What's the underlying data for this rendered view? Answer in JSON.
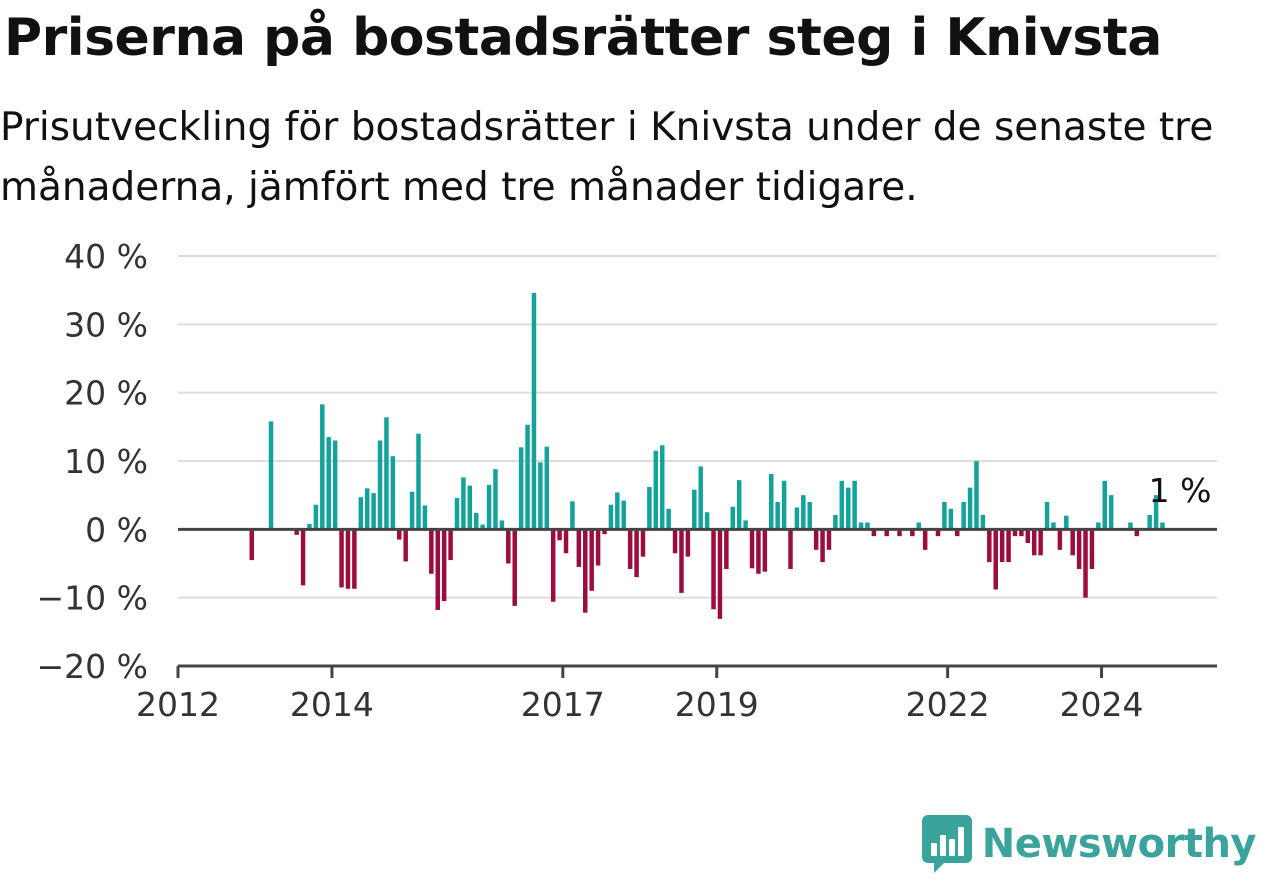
{
  "title": "Priserna på bostadsrätter steg i Knivsta",
  "subtitle": "Prisutveckling för bostadsrätter i Knivsta under de senaste tre månaderna, jämfört med tre månader tidigare.",
  "brand": {
    "name": "Newsworthy",
    "icon": "newsworthy-chart-icon"
  },
  "colors": {
    "positive": "#13a39a",
    "negative": "#9b0d3e",
    "grid": "#dddddd",
    "axis": "#444444",
    "brand": "#3aa39b"
  },
  "chart_data": {
    "type": "bar",
    "title": "",
    "xlabel": "",
    "ylabel": "",
    "ylim": [
      -20,
      40
    ],
    "xlim": [
      "2012-01",
      "2025-07"
    ],
    "y_ticks": [
      {
        "value": 40,
        "label": "40 %"
      },
      {
        "value": 30,
        "label": "30 %"
      },
      {
        "value": 20,
        "label": "20 %"
      },
      {
        "value": 10,
        "label": "10 %"
      },
      {
        "value": 0,
        "label": "0 %"
      },
      {
        "value": -10,
        "label": "−10 %"
      },
      {
        "value": -20,
        "label": "−20 %"
      }
    ],
    "x_ticks": [
      {
        "value": "2012-01",
        "label": "2012"
      },
      {
        "value": "2014-01",
        "label": "2014"
      },
      {
        "value": "2017-01",
        "label": "2017"
      },
      {
        "value": "2019-01",
        "label": "2019"
      },
      {
        "value": "2022-01",
        "label": "2022"
      },
      {
        "value": "2024-01",
        "label": "2024"
      }
    ],
    "grid": true,
    "annotation": {
      "text": "1 %",
      "x": "2024-12",
      "y": 1
    },
    "series": [
      {
        "values": [
          [
            "2012-12",
            -4.5
          ],
          [
            "2013-03",
            15.8
          ],
          [
            "2013-07",
            -0.8
          ],
          [
            "2013-08",
            -8.2
          ],
          [
            "2013-09",
            0.8
          ],
          [
            "2013-10",
            3.6
          ],
          [
            "2013-11",
            18.3
          ],
          [
            "2013-12",
            13.5
          ],
          [
            "2014-01",
            13.0
          ],
          [
            "2014-02",
            -8.5
          ],
          [
            "2014-03",
            -8.7
          ],
          [
            "2014-04",
            -8.7
          ],
          [
            "2014-05",
            4.7
          ],
          [
            "2014-06",
            6.0
          ],
          [
            "2014-07",
            5.3
          ],
          [
            "2014-08",
            13.0
          ],
          [
            "2014-09",
            16.4
          ],
          [
            "2014-10",
            10.7
          ],
          [
            "2014-11",
            -1.5
          ],
          [
            "2014-12",
            -4.7
          ],
          [
            "2015-01",
            5.5
          ],
          [
            "2015-02",
            14.0
          ],
          [
            "2015-03",
            3.5
          ],
          [
            "2015-04",
            -6.5
          ],
          [
            "2015-05",
            -11.8
          ],
          [
            "2015-06",
            -10.5
          ],
          [
            "2015-07",
            -4.5
          ],
          [
            "2015-08",
            4.6
          ],
          [
            "2015-09",
            7.6
          ],
          [
            "2015-10",
            6.4
          ],
          [
            "2015-11",
            2.4
          ],
          [
            "2015-12",
            0.7
          ],
          [
            "2016-01",
            6.5
          ],
          [
            "2016-02",
            8.8
          ],
          [
            "2016-03",
            1.3
          ],
          [
            "2016-04",
            -5.0
          ],
          [
            "2016-05",
            -11.2
          ],
          [
            "2016-06",
            12.0
          ],
          [
            "2016-07",
            15.3
          ],
          [
            "2016-08",
            34.6
          ],
          [
            "2016-09",
            9.8
          ],
          [
            "2016-10",
            12.1
          ],
          [
            "2016-11",
            -10.6
          ],
          [
            "2016-12",
            -1.6
          ],
          [
            "2017-01",
            -3.5
          ],
          [
            "2017-02",
            4.1
          ],
          [
            "2017-03",
            -5.5
          ],
          [
            "2017-04",
            -12.2
          ],
          [
            "2017-05",
            -9.0
          ],
          [
            "2017-06",
            -5.3
          ],
          [
            "2017-07",
            -0.7
          ],
          [
            "2017-08",
            3.6
          ],
          [
            "2017-09",
            5.4
          ],
          [
            "2017-10",
            4.2
          ],
          [
            "2017-11",
            -5.8
          ],
          [
            "2017-12",
            -7.0
          ],
          [
            "2018-01",
            -4.0
          ],
          [
            "2018-02",
            6.2
          ],
          [
            "2018-03",
            11.5
          ],
          [
            "2018-04",
            12.3
          ],
          [
            "2018-05",
            3.0
          ],
          [
            "2018-06",
            -3.5
          ],
          [
            "2018-07",
            -9.3
          ],
          [
            "2018-08",
            -4.0
          ],
          [
            "2018-09",
            5.8
          ],
          [
            "2018-10",
            9.2
          ],
          [
            "2018-11",
            2.5
          ],
          [
            "2018-12",
            -11.7
          ],
          [
            "2019-01",
            -13.1
          ],
          [
            "2019-02",
            -5.8
          ],
          [
            "2019-03",
            3.3
          ],
          [
            "2019-04",
            7.2
          ],
          [
            "2019-05",
            1.3
          ],
          [
            "2019-06",
            -5.7
          ],
          [
            "2019-07",
            -6.5
          ],
          [
            "2019-08",
            -6.2
          ],
          [
            "2019-09",
            8.1
          ],
          [
            "2019-10",
            4.0
          ],
          [
            "2019-11",
            7.1
          ],
          [
            "2019-12",
            -5.8
          ],
          [
            "2020-01",
            3.2
          ],
          [
            "2020-02",
            5.0
          ],
          [
            "2020-03",
            4.0
          ],
          [
            "2020-04",
            -3.0
          ],
          [
            "2020-05",
            -4.8
          ],
          [
            "2020-06",
            -3.0
          ],
          [
            "2020-07",
            2.1
          ],
          [
            "2020-08",
            7.1
          ],
          [
            "2020-09",
            6.1
          ],
          [
            "2020-10",
            7.1
          ],
          [
            "2020-11",
            1.0
          ],
          [
            "2020-12",
            1.0
          ],
          [
            "2021-01",
            -1.0
          ],
          [
            "2021-03",
            -1.0
          ],
          [
            "2021-05",
            -1.0
          ],
          [
            "2021-07",
            -1.0
          ],
          [
            "2021-08",
            1.0
          ],
          [
            "2021-09",
            -3.0
          ],
          [
            "2021-11",
            -1.0
          ],
          [
            "2021-12",
            4.0
          ],
          [
            "2022-01",
            3.0
          ],
          [
            "2022-02",
            -1.0
          ],
          [
            "2022-03",
            4.0
          ],
          [
            "2022-04",
            6.1
          ],
          [
            "2022-05",
            10.0
          ],
          [
            "2022-06",
            2.1
          ],
          [
            "2022-07",
            -4.8
          ],
          [
            "2022-08",
            -8.8
          ],
          [
            "2022-09",
            -4.8
          ],
          [
            "2022-10",
            -4.8
          ],
          [
            "2022-11",
            -1.0
          ],
          [
            "2022-12",
            -1.0
          ],
          [
            "2023-01",
            -2.0
          ],
          [
            "2023-02",
            -3.8
          ],
          [
            "2023-03",
            -3.8
          ],
          [
            "2023-04",
            4.0
          ],
          [
            "2023-05",
            1.0
          ],
          [
            "2023-06",
            -3.0
          ],
          [
            "2023-07",
            2.0
          ],
          [
            "2023-08",
            -3.8
          ],
          [
            "2023-09",
            -5.8
          ],
          [
            "2023-10",
            -10.0
          ],
          [
            "2023-11",
            -5.8
          ],
          [
            "2023-12",
            1.0
          ],
          [
            "2024-01",
            7.1
          ],
          [
            "2024-02",
            5.0
          ],
          [
            "2024-05",
            1.0
          ],
          [
            "2024-06",
            -1.0
          ],
          [
            "2024-08",
            2.1
          ],
          [
            "2024-09",
            5.0
          ],
          [
            "2024-10",
            1.0
          ]
        ]
      }
    ]
  }
}
